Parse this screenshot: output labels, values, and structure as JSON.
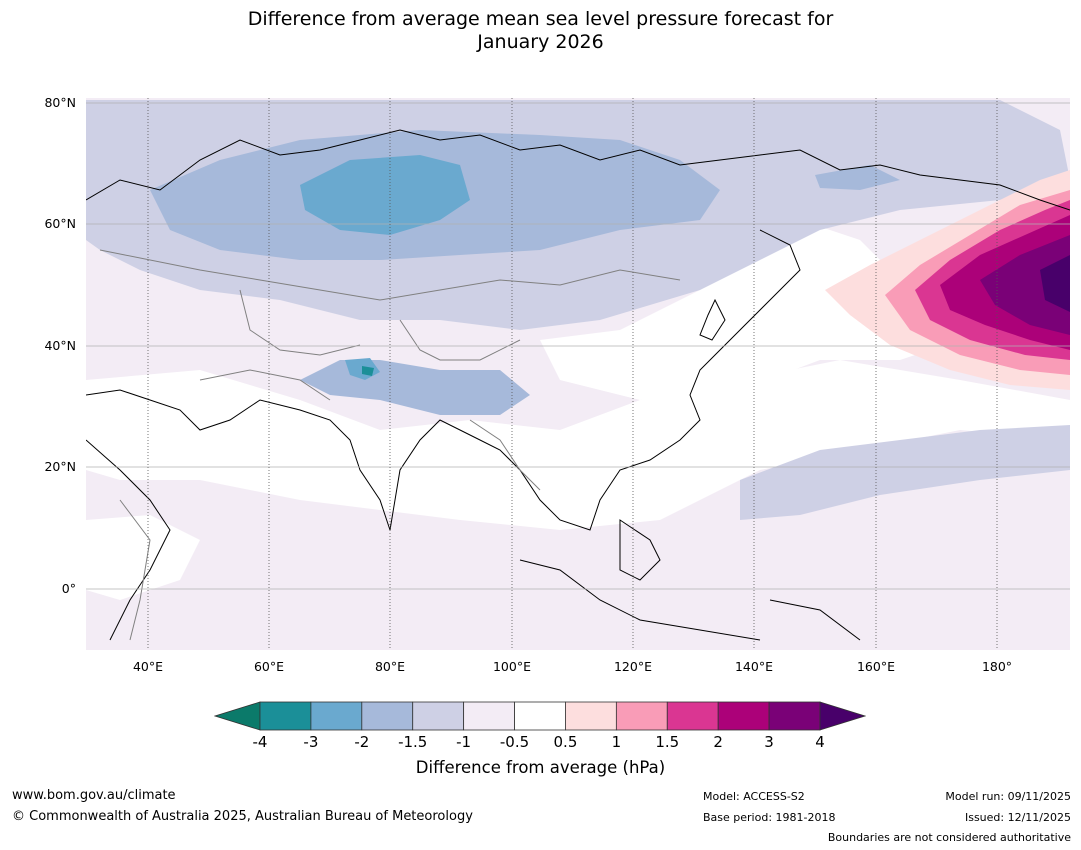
{
  "title": {
    "line1": "Difference from average mean sea level pressure forecast for",
    "line2": "January 2026"
  },
  "map": {
    "lat_labels": [
      "80°N",
      "60°N",
      "40°N",
      "20°N",
      "0°"
    ],
    "lon_labels": [
      "40°E",
      "60°E",
      "80°E",
      "100°E",
      "120°E",
      "140°E",
      "160°E",
      "180°"
    ],
    "lon_range": [
      30,
      192
    ],
    "lat_range": [
      -10,
      81
    ]
  },
  "colorbar": {
    "title": "Difference from average (hPa)",
    "ticks": [
      "-4",
      "-3",
      "-2",
      "-1.5",
      "-1",
      "-0.5",
      "0.5",
      "1",
      "1.5",
      "2",
      "3",
      "4"
    ],
    "colors": [
      "#0b7a6a",
      "#1b8f98",
      "#6aa9cf",
      "#a6b9da",
      "#ced0e5",
      "#f3ecf5",
      "#ffffff",
      "#fddede",
      "#f99cb7",
      "#da3692",
      "#ac0179",
      "#7a0177",
      "#48006a"
    ]
  },
  "footer": {
    "url": "www.bom.gov.au/climate",
    "copyright": "© Commonwealth of Australia 2025, Australian Bureau of Meteorology",
    "model": "Model: ACCESS-S2",
    "base_period": "Base period: 1981-2018",
    "model_run": "Model run: 09/11/2025",
    "issued": "Issued: 12/11/2025",
    "disclaimer": "Boundaries are not considered authoritative"
  }
}
